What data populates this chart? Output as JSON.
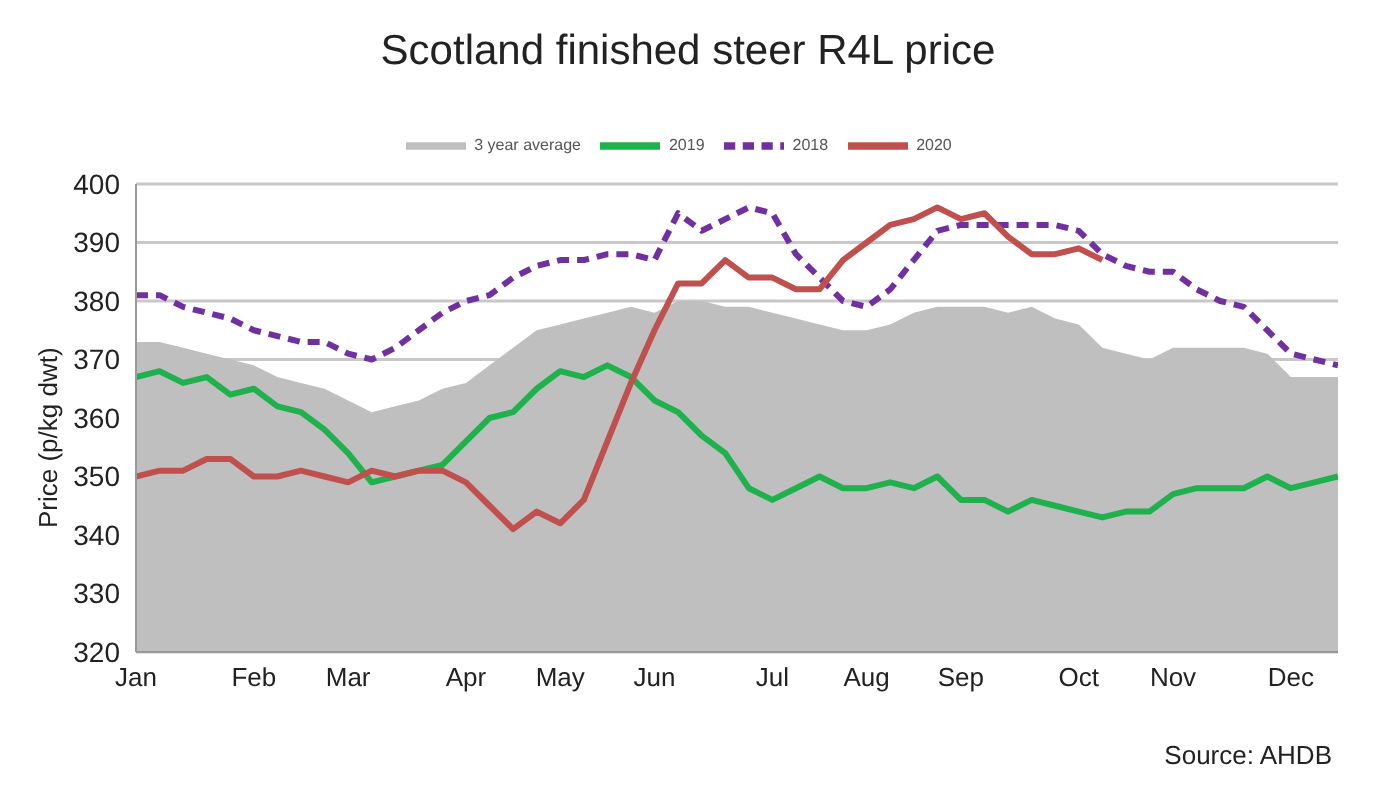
{
  "chart_data": {
    "type": "line",
    "title": "Scotland finished steer R4L price",
    "ylabel": "Price (p/kg dwt)",
    "categories": [
      "Jan",
      null,
      null,
      null,
      null,
      "Feb",
      null,
      null,
      null,
      "Mar",
      null,
      null,
      null,
      null,
      "Apr",
      null,
      null,
      null,
      "May",
      null,
      null,
      null,
      "Jun",
      null,
      null,
      null,
      null,
      "Jul",
      null,
      null,
      null,
      "Aug",
      null,
      null,
      null,
      "Sep",
      null,
      null,
      null,
      null,
      "Oct",
      null,
      null,
      null,
      "Nov",
      null,
      null,
      null,
      null,
      "Dec",
      null,
      null
    ],
    "ylim": [
      320,
      400
    ],
    "yticks": [
      320,
      330,
      340,
      350,
      360,
      370,
      380,
      390,
      400
    ],
    "grid": "y",
    "legend": "top",
    "series": [
      {
        "name": "3 year average",
        "type": "area",
        "color": "#bfbfbf",
        "values": [
          373,
          373,
          372,
          371,
          370,
          369,
          367,
          366,
          365,
          363,
          361,
          362,
          363,
          365,
          366,
          369,
          372,
          375,
          376,
          377,
          378,
          379,
          378,
          380,
          380,
          379,
          379,
          378,
          377,
          376,
          375,
          375,
          376,
          378,
          379,
          379,
          379,
          378,
          379,
          377,
          376,
          372,
          371,
          370,
          372,
          372,
          372,
          372,
          371,
          367,
          367,
          367
        ]
      },
      {
        "name": "2019",
        "type": "line",
        "color": "#1fb14b",
        "line_style": "solid",
        "values": [
          367,
          368,
          366,
          367,
          364,
          365,
          362,
          361,
          358,
          354,
          349,
          350,
          351,
          352,
          356,
          360,
          361,
          365,
          368,
          367,
          369,
          367,
          363,
          361,
          357,
          354,
          348,
          346,
          348,
          350,
          348,
          348,
          349,
          348,
          350,
          346,
          346,
          344,
          346,
          345,
          344,
          343,
          344,
          344,
          347,
          348,
          348,
          348,
          350,
          348,
          349,
          350
        ]
      },
      {
        "name": "2018",
        "type": "line",
        "color": "#7030a0",
        "line_style": "dashed",
        "values": [
          381,
          381,
          379,
          378,
          377,
          375,
          374,
          373,
          373,
          371,
          370,
          372,
          375,
          378,
          380,
          381,
          384,
          386,
          387,
          387,
          388,
          388,
          387,
          395,
          392,
          394,
          396,
          395,
          388,
          384,
          380,
          379,
          382,
          387,
          392,
          393,
          393,
          393,
          393,
          393,
          392,
          388,
          386,
          385,
          385,
          382,
          380,
          379,
          375,
          371,
          370,
          369
        ]
      },
      {
        "name": "2020",
        "type": "line",
        "color": "#c0504d",
        "line_style": "solid",
        "values": [
          350,
          351,
          351,
          353,
          353,
          350,
          350,
          351,
          350,
          349,
          351,
          350,
          351,
          351,
          349,
          345,
          341,
          344,
          342,
          346,
          356,
          366,
          375,
          383,
          383,
          387,
          384,
          384,
          382,
          382,
          387,
          390,
          393,
          394,
          396,
          394,
          395,
          391,
          388,
          388,
          389,
          387,
          null,
          null,
          null,
          null,
          null,
          null,
          null,
          null,
          null,
          null
        ]
      }
    ],
    "annotations": [
      "Source: AHDB"
    ]
  }
}
